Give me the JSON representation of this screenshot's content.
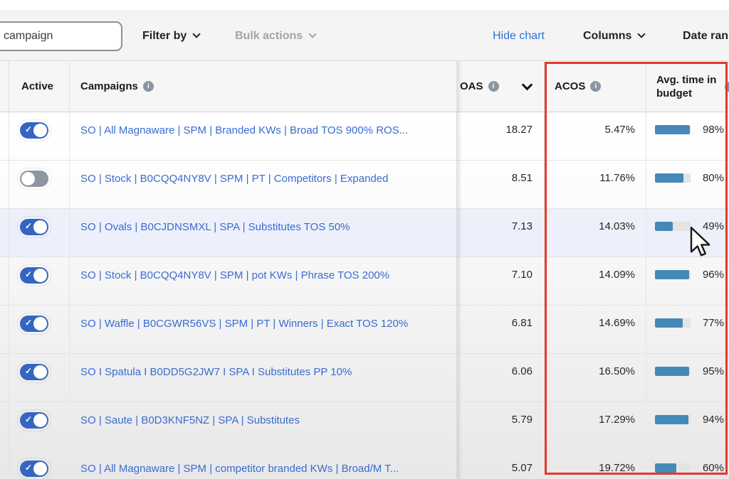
{
  "toolbar": {
    "search": {
      "value": "campaign"
    },
    "filter_by_label": "Filter by",
    "bulk_actions_label": "Bulk actions",
    "hide_chart_label": "Hide chart",
    "columns_label": "Columns",
    "date_range_label": "Date ran"
  },
  "table": {
    "headers": {
      "active": "Active",
      "campaigns": "Campaigns",
      "roas": "OAS",
      "acos": "ACOS",
      "avg_time_in_budget": "Avg. time in budget"
    },
    "rows": [
      {
        "active": true,
        "highlighted": false,
        "campaign": "SO | All Magnaware | SPM | Branded KWs | Broad TOS 900% ROS...",
        "roas": "18.27",
        "acos": "5.47%",
        "budget_pct": 98,
        "budget_label": "98%"
      },
      {
        "active": false,
        "highlighted": false,
        "campaign": "SO | Stock | B0CQQ4NY8V | SPM | PT | Competitors | Expanded",
        "roas": "8.51",
        "acos": "11.76%",
        "budget_pct": 80,
        "budget_label": "80%"
      },
      {
        "active": true,
        "highlighted": true,
        "campaign": "SO | Ovals | B0CJDNSMXL | SPA | Substitutes TOS 50%",
        "roas": "7.13",
        "acos": "14.03%",
        "budget_pct": 49,
        "budget_label": "49%"
      },
      {
        "active": true,
        "highlighted": false,
        "campaign": "SO | Stock | B0CQQ4NY8V | SPM | pot KWs | Phrase TOS 200%",
        "roas": "7.10",
        "acos": "14.09%",
        "budget_pct": 96,
        "budget_label": "96%"
      },
      {
        "active": true,
        "highlighted": false,
        "campaign": "SO | Waffle | B0CGWR56VS | SPM | PT | Winners | Exact TOS 120%",
        "roas": "6.81",
        "acos": "14.69%",
        "budget_pct": 77,
        "budget_label": "77%"
      },
      {
        "active": true,
        "highlighted": false,
        "campaign": "SO I Spatula I B0DD5G2JW7 I SPA I Substitutes PP 10%",
        "roas": "6.06",
        "acos": "16.50%",
        "budget_pct": 95,
        "budget_label": "95%"
      },
      {
        "active": true,
        "highlighted": false,
        "campaign": "SO | Saute | B0D3KNF5NZ | SPA | Substitutes",
        "roas": "5.79",
        "acos": "17.29%",
        "budget_pct": 94,
        "budget_label": "94%"
      },
      {
        "active": true,
        "highlighted": false,
        "campaign": "SO | All Magnaware | SPM | competitor branded KWs | Broad/M T...",
        "roas": "5.07",
        "acos": "19.72%",
        "budget_pct": 60,
        "budget_label": "60%"
      }
    ]
  },
  "colors": {
    "link_blue": "#3a6bd0",
    "action_blue": "#2e72d8",
    "toggle_blue": "#3465c2",
    "bar_blue": "#4489b7",
    "annotation_red": "#e5382b"
  }
}
